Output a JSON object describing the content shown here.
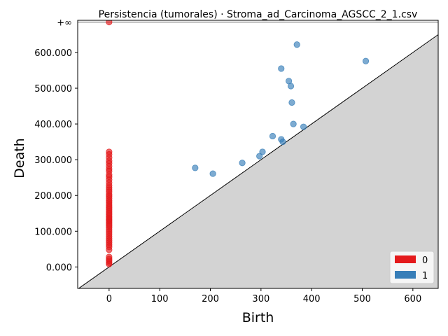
{
  "chart_data": {
    "type": "scatter",
    "title": "Persistencia (tumorales) · Stroma_ad_Carcinoma_AGSCC_2_1.csv",
    "xlabel": "Birth",
    "ylabel": "Death",
    "xlim": [
      -62,
      650
    ],
    "ylim": [
      -60,
      690
    ],
    "x_ticks": [
      0,
      100,
      200,
      300,
      400,
      500,
      600
    ],
    "x_tick_labels": [
      "0",
      "100",
      "200",
      "300",
      "400",
      "500",
      "600"
    ],
    "y_ticks": [
      0,
      100,
      200,
      300,
      400,
      500,
      600
    ],
    "y_tick_labels": [
      "0.000",
      "100.000",
      "200.000",
      "300.000",
      "400.000",
      "500.000",
      "600.000"
    ],
    "inf_value": 685,
    "inf_label": "+∞",
    "diagonal_fill_color": "#d3d3d3",
    "legend": {
      "position": "lower right",
      "entries": [
        {
          "label": "0",
          "color": "#e41a1c"
        },
        {
          "label": "1",
          "color": "#377eb8"
        }
      ]
    },
    "series": [
      {
        "name": "0",
        "color": "#e41a1c",
        "points": [
          [
            0,
            685
          ],
          [
            0,
            322
          ],
          [
            0,
            315
          ],
          [
            0,
            306
          ],
          [
            0,
            297
          ],
          [
            0,
            290
          ],
          [
            0,
            282
          ],
          [
            0,
            274
          ],
          [
            0,
            268
          ],
          [
            0,
            258
          ],
          [
            0,
            252
          ],
          [
            0,
            244
          ],
          [
            0,
            236
          ],
          [
            0,
            228
          ],
          [
            0,
            222
          ],
          [
            0,
            216
          ],
          [
            0,
            210
          ],
          [
            0,
            203
          ],
          [
            0,
            198
          ],
          [
            0,
            192
          ],
          [
            0,
            186
          ],
          [
            0,
            181
          ],
          [
            0,
            176
          ],
          [
            0,
            171
          ],
          [
            0,
            166
          ],
          [
            0,
            161
          ],
          [
            0,
            156
          ],
          [
            0,
            151
          ],
          [
            0,
            146
          ],
          [
            0,
            141
          ],
          [
            0,
            137
          ],
          [
            0,
            133
          ],
          [
            0,
            129
          ],
          [
            0,
            125
          ],
          [
            0,
            120
          ],
          [
            0,
            115
          ],
          [
            0,
            110
          ],
          [
            0,
            104
          ],
          [
            0,
            98
          ],
          [
            0,
            92
          ],
          [
            0,
            86
          ],
          [
            0,
            80
          ],
          [
            0,
            74
          ],
          [
            0,
            68
          ],
          [
            0,
            62
          ],
          [
            0,
            56
          ],
          [
            0,
            48
          ],
          [
            0,
            28
          ],
          [
            0,
            22
          ],
          [
            0,
            17
          ],
          [
            0,
            12
          ],
          [
            0,
            8
          ]
        ]
      },
      {
        "name": "1",
        "color": "#377eb8",
        "points": [
          [
            170,
            277
          ],
          [
            205,
            261
          ],
          [
            263,
            291
          ],
          [
            297,
            310
          ],
          [
            303,
            322
          ],
          [
            323,
            366
          ],
          [
            340,
            357
          ],
          [
            343,
            350
          ],
          [
            340,
            555
          ],
          [
            355,
            520
          ],
          [
            359,
            506
          ],
          [
            361,
            460
          ],
          [
            364,
            400
          ],
          [
            371,
            622
          ],
          [
            384,
            392
          ],
          [
            507,
            576
          ]
        ]
      }
    ]
  }
}
